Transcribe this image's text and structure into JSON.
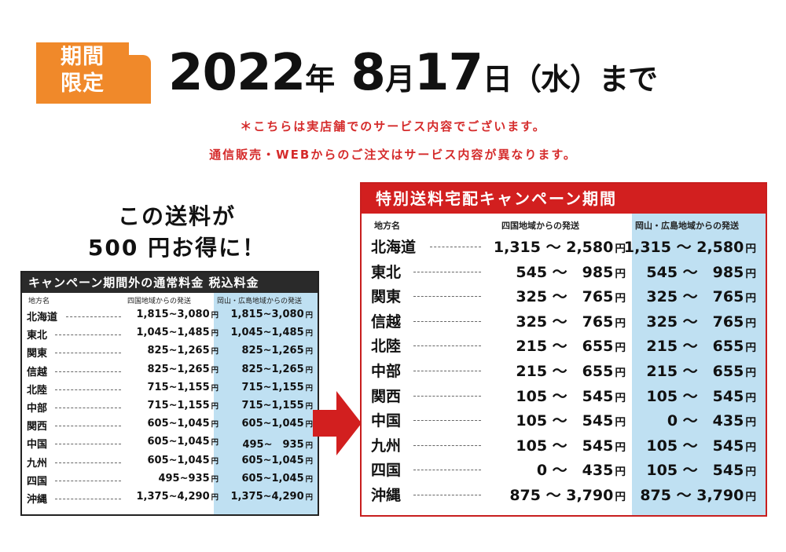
{
  "badge": {
    "line1": "期間",
    "line2": "限定"
  },
  "headline": {
    "year": "2022",
    "year_unit": "年",
    "month": "8",
    "month_unit": "月",
    "day": "17",
    "day_unit": "日",
    "weekday": "（水）まで"
  },
  "notes": [
    "＊こちらは実店舗でのサービス内容でございます。",
    "通信販売・WEBからのご注文はサービス内容が異なります。"
  ],
  "promo": {
    "line1": "この送料が",
    "line2": "500 円お得に！"
  },
  "regular_table": {
    "title": "キャンペーン期間外の通常料金 税込料金",
    "col_region": "地方名",
    "col_shikoku": "四国地域からの発送",
    "col_okayama": "岡山・広島地域からの発送",
    "yen": "円",
    "rows": [
      {
        "name": "北海道",
        "shikoku": "1,815~3,080",
        "okayama": "1,815~3,080"
      },
      {
        "name": "東北",
        "shikoku": "1,045~1,485",
        "okayama": "1,045~1,485"
      },
      {
        "name": "関東",
        "shikoku": "825~1,265",
        "okayama": "825~1,265"
      },
      {
        "name": "信越",
        "shikoku": "825~1,265",
        "okayama": "825~1,265"
      },
      {
        "name": "北陸",
        "shikoku": "715~1,155",
        "okayama": "715~1,155"
      },
      {
        "name": "中部",
        "shikoku": "715~1,155",
        "okayama": "715~1,155"
      },
      {
        "name": "関西",
        "shikoku": "605~1,045",
        "okayama": "605~1,045"
      },
      {
        "name": "中国",
        "shikoku": "605~1,045",
        "okayama": "495~　935"
      },
      {
        "name": "九州",
        "shikoku": "605~1,045",
        "okayama": "605~1,045"
      },
      {
        "name": "四国",
        "shikoku": "495~935",
        "okayama": "605~1,045"
      },
      {
        "name": "沖縄",
        "shikoku": "1,375~4,290",
        "okayama": "1,375~4,290"
      }
    ]
  },
  "campaign_table": {
    "title": "特別送料宅配キャンペーン期間",
    "col_region": "地方名",
    "col_shikoku": "四国地域からの発送",
    "col_okayama": "岡山・広島地域からの発送",
    "yen": "円",
    "rows": [
      {
        "name": "北海道",
        "shikoku": "1,315 ～ 2,580",
        "okayama": "1,315 ～ 2,580"
      },
      {
        "name": "東北",
        "shikoku": "545 ～　985",
        "okayama": "545 ～　985"
      },
      {
        "name": "関東",
        "shikoku": "325 ～　765",
        "okayama": "325 ～　765"
      },
      {
        "name": "信越",
        "shikoku": "325 ～　765",
        "okayama": "325 ～　765"
      },
      {
        "name": "北陸",
        "shikoku": "215 ～　655",
        "okayama": "215 ～　655"
      },
      {
        "name": "中部",
        "shikoku": "215 ～　655",
        "okayama": "215 ～　655"
      },
      {
        "name": "関西",
        "shikoku": "105 ～　545",
        "okayama": "105 ～　545"
      },
      {
        "name": "中国",
        "shikoku": "105 ～　545",
        "okayama": "0 ～　435"
      },
      {
        "name": "九州",
        "shikoku": "105 ～　545",
        "okayama": "105 ～　545"
      },
      {
        "name": "四国",
        "shikoku": "0 ～　435",
        "okayama": "105 ～　545"
      },
      {
        "name": "沖縄",
        "shikoku": "875 ～ 3,790",
        "okayama": "875 ～ 3,790"
      }
    ]
  },
  "colors": {
    "badge": "#f0892a",
    "note_red": "#d52b2b",
    "campaign_red": "#d21f1f",
    "highlight_blue": "#bfe0f2"
  }
}
